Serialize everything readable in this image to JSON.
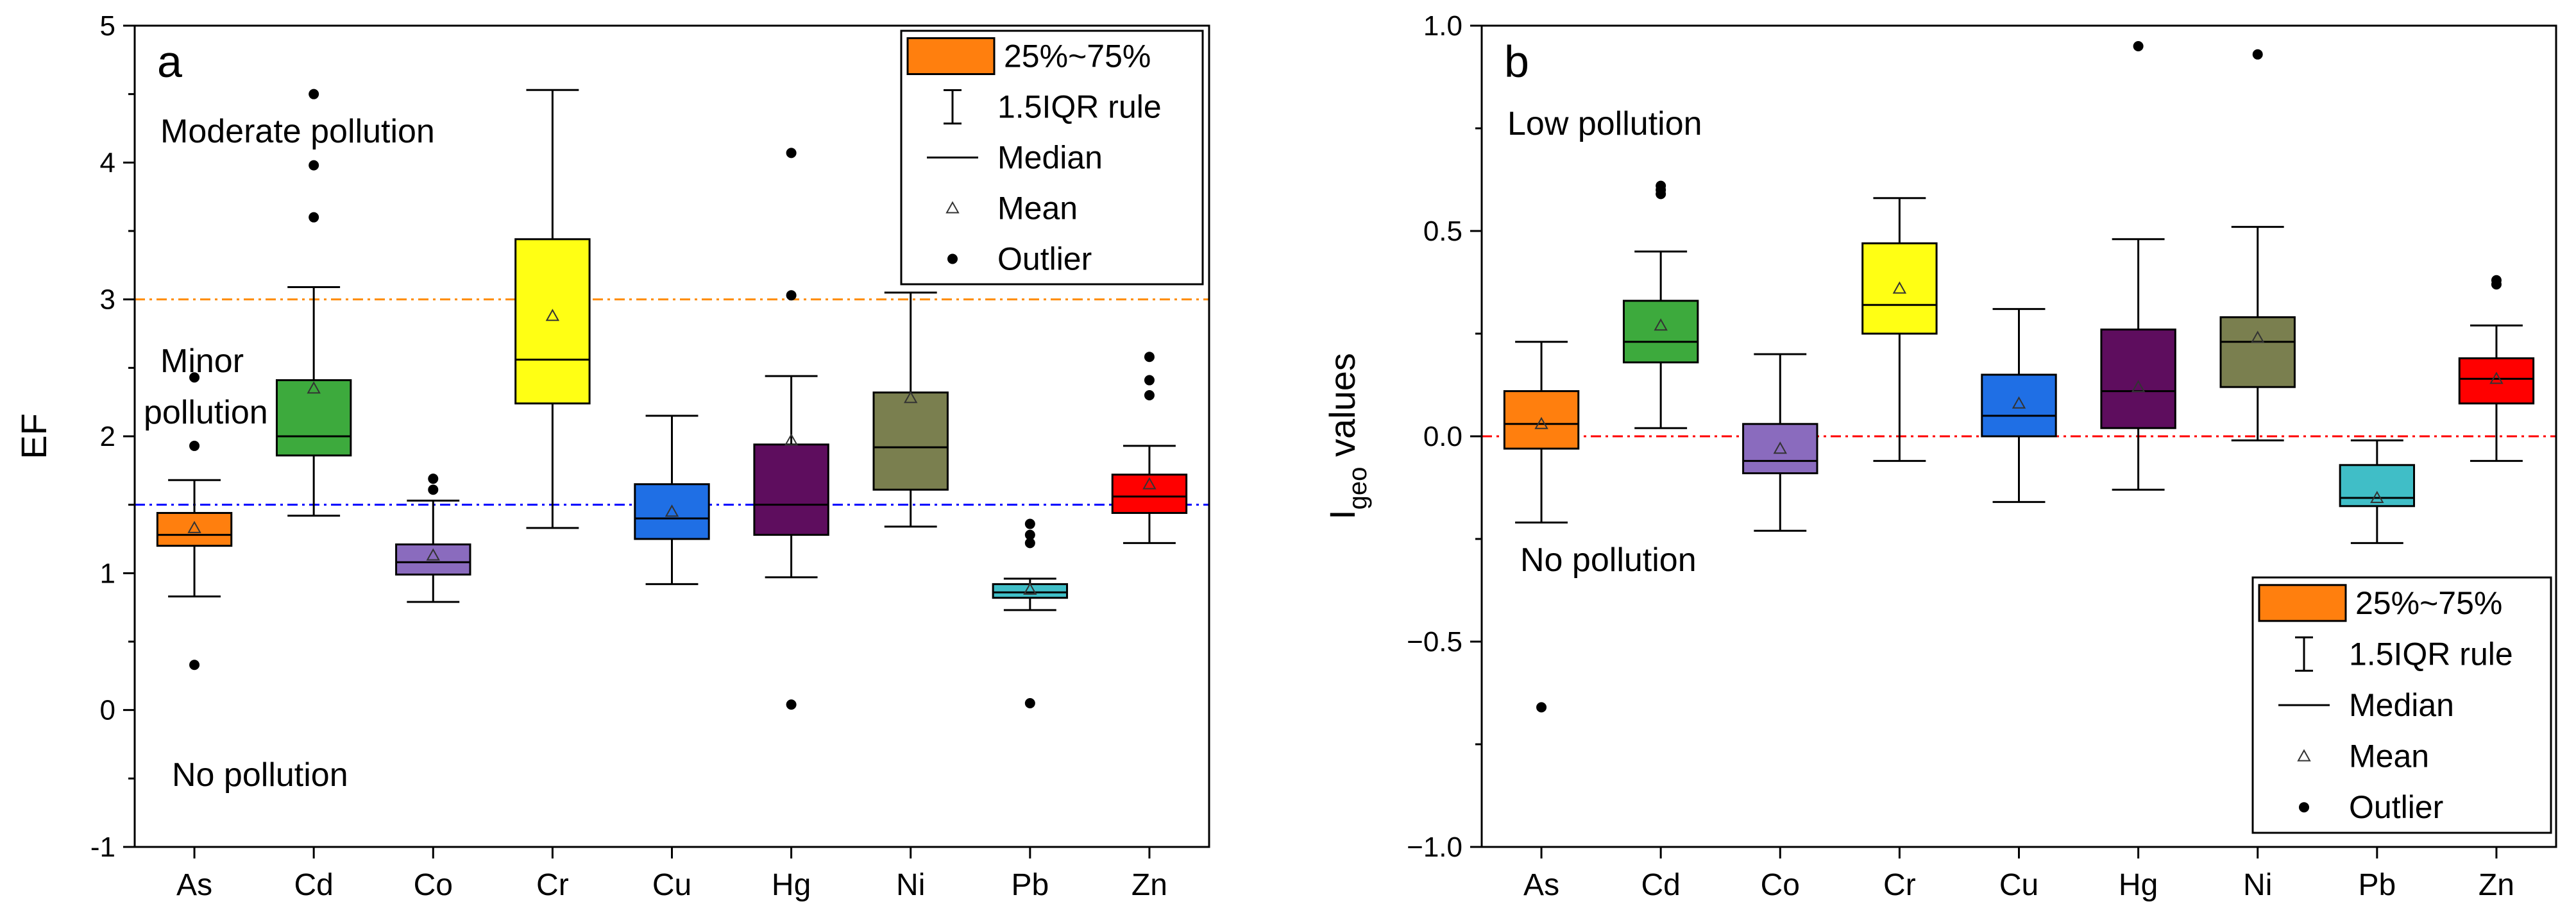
{
  "chart_data": [
    {
      "type": "box",
      "panel_label": "a",
      "ylabel": "EF",
      "ylim": [
        -1,
        5
      ],
      "yticks": [
        -1,
        0,
        1,
        2,
        3,
        4,
        5
      ],
      "categories": [
        "As",
        "Cd",
        "Co",
        "Cr",
        "Cu",
        "Hg",
        "Ni",
        "Pb",
        "Zn"
      ],
      "colors": [
        "#FF7F0E",
        "#3DAA3D",
        "#8A6BBE",
        "#FFFF14",
        "#1F6FE5",
        "#5E0D5E",
        "#7A7F4F",
        "#40BEC7",
        "#FF0000"
      ],
      "boxes": [
        {
          "q1": 1.2,
          "median": 1.28,
          "q3": 1.44,
          "mean": 1.33,
          "lo": 0.83,
          "hi": 1.68,
          "outliers": [
            1.93,
            2.43,
            0.33
          ]
        },
        {
          "q1": 1.86,
          "median": 2.0,
          "q3": 2.41,
          "mean": 2.35,
          "lo": 1.42,
          "hi": 3.09,
          "outliers": [
            3.6,
            3.98,
            4.5
          ]
        },
        {
          "q1": 0.99,
          "median": 1.08,
          "q3": 1.21,
          "mean": 1.13,
          "lo": 0.79,
          "hi": 1.53,
          "outliers": [
            1.61,
            1.69
          ]
        },
        {
          "q1": 2.24,
          "median": 2.56,
          "q3": 3.44,
          "mean": 2.88,
          "lo": 1.33,
          "hi": 4.53,
          "outliers": []
        },
        {
          "q1": 1.25,
          "median": 1.4,
          "q3": 1.65,
          "mean": 1.45,
          "lo": 0.92,
          "hi": 2.15,
          "outliers": []
        },
        {
          "q1": 1.28,
          "median": 1.5,
          "q3": 1.94,
          "mean": 1.97,
          "lo": 0.97,
          "hi": 2.44,
          "outliers": [
            3.03,
            4.07,
            0.04
          ]
        },
        {
          "q1": 1.61,
          "median": 1.92,
          "q3": 2.32,
          "mean": 2.28,
          "lo": 1.34,
          "hi": 3.05,
          "outliers": []
        },
        {
          "q1": 0.82,
          "median": 0.86,
          "q3": 0.92,
          "mean": 0.88,
          "lo": 0.73,
          "hi": 0.96,
          "outliers": [
            1.22,
            1.28,
            1.36,
            0.05
          ]
        },
        {
          "q1": 1.44,
          "median": 1.56,
          "q3": 1.72,
          "mean": 1.65,
          "lo": 1.22,
          "hi": 1.93,
          "outliers": [
            2.3,
            2.41,
            2.58
          ]
        }
      ],
      "reference_lines": [
        {
          "y": 3,
          "color": "#FF8C00"
        },
        {
          "y": 1.5,
          "color": "#0000FF"
        }
      ],
      "annotations": [
        "Moderate pollution",
        "Minor",
        "pollution",
        "No pollution"
      ],
      "legend": {
        "position": "top-right",
        "entries": [
          "25%~75%",
          "1.5IQR rule",
          "Median",
          "Mean",
          "Outlier"
        ]
      }
    },
    {
      "type": "box",
      "panel_label": "b",
      "ylabel_main": "I",
      "ylabel_sub": "geo",
      "ylabel_rest": " values",
      "ylim": [
        -1.0,
        1.0
      ],
      "yticks": [
        -1.0,
        -0.5,
        0.0,
        0.5,
        1.0
      ],
      "ytick_labels": [
        "−1.0",
        "−0.5",
        "0.0",
        "0.5",
        "1.0"
      ],
      "categories": [
        "As",
        "Cd",
        "Co",
        "Cr",
        "Cu",
        "Hg",
        "Ni",
        "Pb",
        "Zn"
      ],
      "colors": [
        "#FF7F0E",
        "#3DAA3D",
        "#8A6BBE",
        "#FFFF14",
        "#1F6FE5",
        "#5E0D5E",
        "#7A7F4F",
        "#40BEC7",
        "#FF0000"
      ],
      "boxes": [
        {
          "q1": -0.03,
          "median": 0.03,
          "q3": 0.11,
          "mean": 0.03,
          "lo": -0.21,
          "hi": 0.23,
          "outliers": [
            -0.66
          ]
        },
        {
          "q1": 0.18,
          "median": 0.23,
          "q3": 0.33,
          "mean": 0.27,
          "lo": 0.02,
          "hi": 0.45,
          "outliers": [
            0.59,
            0.6,
            0.61
          ]
        },
        {
          "q1": -0.09,
          "median": -0.06,
          "q3": 0.03,
          "mean": -0.03,
          "lo": -0.23,
          "hi": 0.2,
          "outliers": []
        },
        {
          "q1": 0.25,
          "median": 0.32,
          "q3": 0.47,
          "mean": 0.36,
          "lo": -0.06,
          "hi": 0.58,
          "outliers": []
        },
        {
          "q1": 0.0,
          "median": 0.05,
          "q3": 0.15,
          "mean": 0.08,
          "lo": -0.16,
          "hi": 0.31,
          "outliers": []
        },
        {
          "q1": 0.02,
          "median": 0.11,
          "q3": 0.26,
          "mean": 0.12,
          "lo": -0.13,
          "hi": 0.48,
          "outliers": [
            0.95
          ]
        },
        {
          "q1": 0.12,
          "median": 0.23,
          "q3": 0.29,
          "mean": 0.24,
          "lo": -0.01,
          "hi": 0.51,
          "outliers": [
            0.93
          ]
        },
        {
          "q1": -0.17,
          "median": -0.15,
          "q3": -0.07,
          "mean": -0.15,
          "lo": -0.26,
          "hi": -0.01,
          "outliers": []
        },
        {
          "q1": 0.08,
          "median": 0.14,
          "q3": 0.19,
          "mean": 0.14,
          "lo": -0.06,
          "hi": 0.27,
          "outliers": [
            0.37,
            0.38
          ]
        }
      ],
      "reference_lines": [
        {
          "y": 0,
          "color": "#FF0000"
        }
      ],
      "annotations": [
        "Low pollution",
        "No pollution"
      ],
      "legend": {
        "position": "bottom-right",
        "entries": [
          "25%~75%",
          "1.5IQR rule",
          "Median",
          "Mean",
          "Outlier"
        ]
      }
    }
  ]
}
